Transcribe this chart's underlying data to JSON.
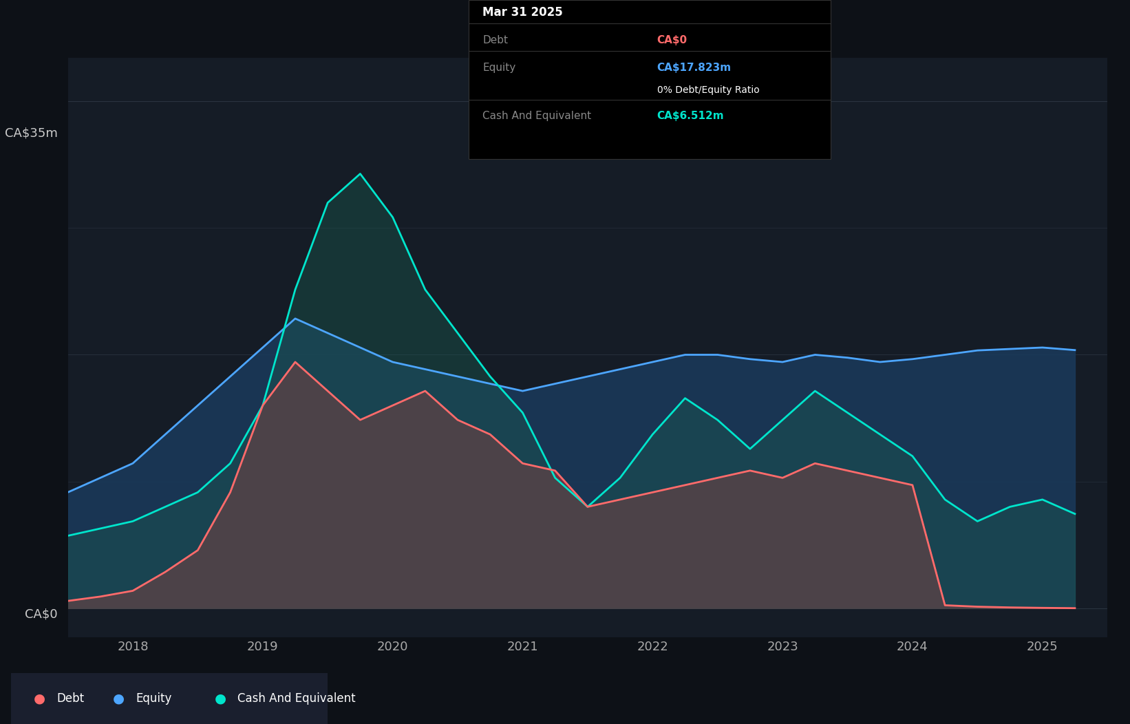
{
  "background_color": "#0d1117",
  "chart_bg_color": "#151c26",
  "ylabel_top": "CA$35m",
  "ylabel_bottom": "CA$0",
  "grid_color": "#2a3340",
  "debt_color": "#ff6b6b",
  "equity_color": "#4da6ff",
  "cash_color": "#00e5cc",
  "debt_fill_color": "#8b3040",
  "equity_fill_color": "#1a3a5c",
  "cash_fill_color": "#1a5c50",
  "legend_bg": "#1a1f2e",
  "tooltip_bg": "#000000",
  "tooltip_title": "Mar 31 2025",
  "tooltip_debt_label": "Debt",
  "tooltip_debt_value": "CA$0",
  "tooltip_equity_label": "Equity",
  "tooltip_equity_value": "CA$17.823m",
  "tooltip_ratio": "0% Debt/Equity Ratio",
  "tooltip_cash_label": "Cash And Equivalent",
  "tooltip_cash_value": "CA$6.512m",
  "xmin": 2017.5,
  "xmax": 2025.5,
  "ymin": -2,
  "ymax": 38,
  "x_ticks": [
    2018,
    2019,
    2020,
    2021,
    2022,
    2023,
    2024,
    2025
  ],
  "debt_x": [
    2017.5,
    2017.75,
    2018.0,
    2018.25,
    2018.5,
    2018.75,
    2019.0,
    2019.25,
    2019.5,
    2019.75,
    2020.0,
    2020.25,
    2020.5,
    2020.75,
    2021.0,
    2021.25,
    2021.5,
    2021.75,
    2022.0,
    2022.25,
    2022.5,
    2022.75,
    2023.0,
    2023.25,
    2023.5,
    2023.75,
    2024.0,
    2024.25,
    2024.5,
    2024.75,
    2025.0,
    2025.25
  ],
  "debt_y": [
    0.5,
    0.8,
    1.2,
    2.5,
    4.0,
    8.0,
    14.0,
    17.0,
    15.0,
    13.0,
    14.0,
    15.0,
    13.0,
    12.0,
    10.0,
    9.5,
    7.0,
    7.5,
    8.0,
    8.5,
    9.0,
    9.5,
    9.0,
    10.0,
    9.5,
    9.0,
    8.5,
    0.2,
    0.1,
    0.05,
    0.02,
    0.0
  ],
  "equity_x": [
    2017.5,
    2017.75,
    2018.0,
    2018.25,
    2018.5,
    2018.75,
    2019.0,
    2019.25,
    2019.5,
    2019.75,
    2020.0,
    2020.25,
    2020.5,
    2020.75,
    2021.0,
    2021.25,
    2021.5,
    2021.75,
    2022.0,
    2022.25,
    2022.5,
    2022.75,
    2023.0,
    2023.25,
    2023.5,
    2023.75,
    2024.0,
    2024.25,
    2024.5,
    2024.75,
    2025.0,
    2025.25
  ],
  "equity_y": [
    8.0,
    9.0,
    10.0,
    12.0,
    14.0,
    16.0,
    18.0,
    20.0,
    19.0,
    18.0,
    17.0,
    16.5,
    16.0,
    15.5,
    15.0,
    15.5,
    16.0,
    16.5,
    17.0,
    17.5,
    17.5,
    17.2,
    17.0,
    17.5,
    17.3,
    17.0,
    17.2,
    17.5,
    17.8,
    17.9,
    18.0,
    17.823
  ],
  "cash_x": [
    2017.5,
    2017.75,
    2018.0,
    2018.25,
    2018.5,
    2018.75,
    2019.0,
    2019.25,
    2019.5,
    2019.75,
    2020.0,
    2020.25,
    2020.5,
    2020.75,
    2021.0,
    2021.25,
    2021.5,
    2021.75,
    2022.0,
    2022.25,
    2022.5,
    2022.75,
    2023.0,
    2023.25,
    2023.5,
    2023.75,
    2024.0,
    2024.25,
    2024.5,
    2024.75,
    2025.0,
    2025.25
  ],
  "cash_y": [
    5.0,
    5.5,
    6.0,
    7.0,
    8.0,
    10.0,
    14.0,
    22.0,
    28.0,
    30.0,
    27.0,
    22.0,
    19.0,
    16.0,
    13.5,
    9.0,
    7.0,
    9.0,
    12.0,
    14.5,
    13.0,
    11.0,
    13.0,
    15.0,
    13.5,
    12.0,
    10.5,
    7.5,
    6.0,
    7.0,
    7.5,
    6.512
  ]
}
